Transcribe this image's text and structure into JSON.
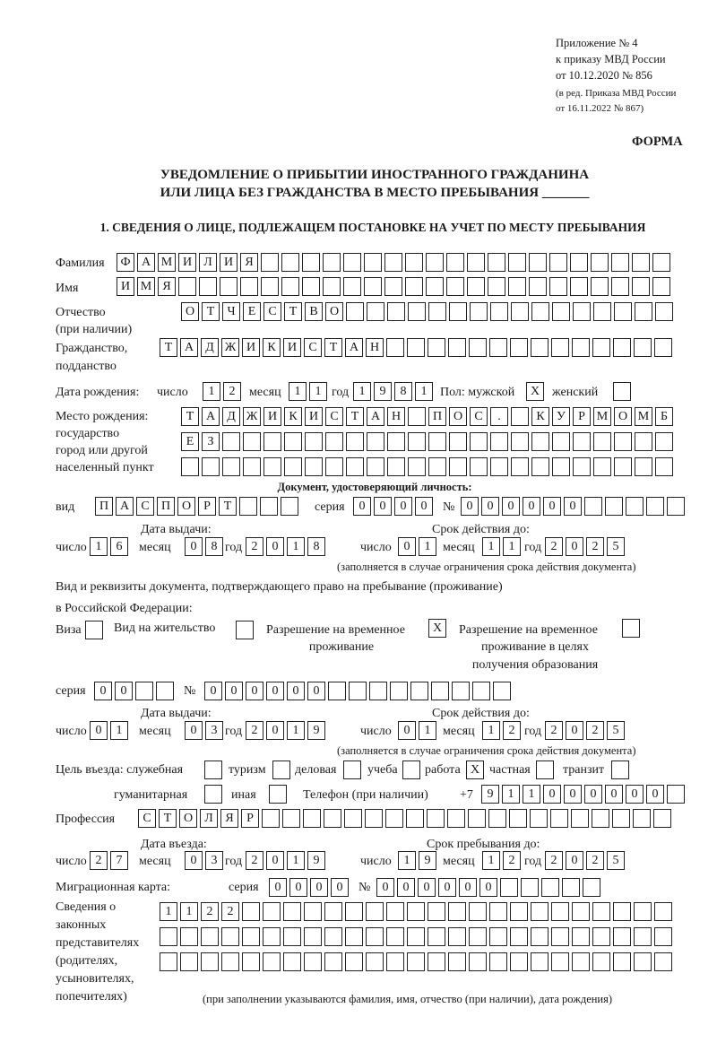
{
  "header": {
    "line1": "Приложение № 4",
    "line2": "к приказу МВД России",
    "line3": "от 10.12.2020 № 856",
    "line4": "(в ред. Приказа МВД России",
    "line5": "от 16.11.2022 № 867)",
    "form_label": "ФОРМА",
    "title1": "УВЕДОМЛЕНИЕ О ПРИБЫТИИ ИНОСТРАННОГО ГРАЖДАНИНА",
    "title2": "ИЛИ ЛИЦА БЕЗ ГРАЖДАНСТВА В МЕСТО ПРЕБЫВАНИЯ _______",
    "section1": "1. СВЕДЕНИЯ О ЛИЦЕ, ПОДЛЕЖАЩЕМ ПОСТАНОВКЕ НА УЧЕТ ПО МЕСТУ ПРЕБЫВАНИЯ"
  },
  "labels": {
    "surname": "Фамилия",
    "name": "Имя",
    "patronymic1": "Отчество",
    "patronymic2": "(при наличии)",
    "citizenship1": "Гражданство,",
    "citizenship2": "подданство",
    "birth_date": "Дата рождения:",
    "day": "число",
    "month": "месяц",
    "year": "год",
    "sex": "Пол: мужской",
    "female": "женский",
    "birth_place1": "Место рождения:",
    "birth_place2": "государство",
    "birth_place3": "город или другой",
    "birth_place4": "населенный пункт",
    "id_doc": "Документ, удостоверяющий личность:",
    "kind": "вид",
    "series": "серия",
    "number": "№",
    "issue_date": "Дата выдачи:",
    "valid_until": "Срок действия до:",
    "validity_note": "(заполняется в случае ограничения срока действия документа)",
    "right_doc1": "Вид и реквизиты документа, подтверждающего право на пребывание (проживание)",
    "right_doc2": "в Российской Федерации:",
    "visa": "Виза",
    "residence": "Вид на жительство",
    "temp_res1": "Разрешение на временное",
    "temp_res2": "проживание",
    "temp_edu1": "Разрешение на временное",
    "temp_edu2": "проживание в целях",
    "temp_edu3": "получения образования",
    "purpose": "Цель въезда: служебная",
    "tourism": "туризм",
    "business": "деловая",
    "study": "учеба",
    "work": "работа",
    "private": "частная",
    "transit": "транзит",
    "humanitarian": "гуманитарная",
    "other": "иная",
    "phone": "Телефон (при наличии)",
    "phone_prefix": "+7",
    "profession": "Профессия",
    "entry_date": "Дата въезда:",
    "stay_until": "Срок пребывания до:",
    "migration_card": "Миграционная карта:",
    "reps1": "Сведения о",
    "reps2": "законных",
    "reps3": "представителях",
    "reps4": "(родителях,",
    "reps5": "усыновителях,",
    "reps6": "попечителях)",
    "reps_note": "(при заполнении указываются фамилия, имя, отчество (при наличии), дата рождения)"
  },
  "values": {
    "surname": "ФАМИЛИЯ",
    "name": "ИМЯ",
    "patronymic": "ОТЧЕСТВО",
    "citizenship": "ТАДЖИКИСТАН",
    "birth_day": "12",
    "birth_month": "11",
    "birth_year": "1981",
    "sex_male": "X",
    "sex_female": "",
    "birth_place_1": "ТАДЖИКИСТАН ПОС. КУРМОМБ",
    "birth_place_2": "ЕЗ",
    "birth_place_3": "",
    "doc_kind": "ПАСПОРТ",
    "doc_series": "0000",
    "doc_number": "000000",
    "doc_issue_day": "16",
    "doc_issue_month": "08",
    "doc_issue_year": "2018",
    "doc_valid_day": "01",
    "doc_valid_month": "11",
    "doc_valid_year": "2025",
    "visa": "",
    "residence": "",
    "temp_res": "X",
    "temp_edu": "",
    "right_series": "00",
    "right_number": "000000",
    "right_issue_day": "01",
    "right_issue_month": "03",
    "right_issue_year": "2019",
    "right_valid_day": "01",
    "right_valid_month": "12",
    "right_valid_year": "2025",
    "purpose_service": "",
    "purpose_tourism": "",
    "purpose_business": "",
    "purpose_study": "",
    "purpose_work": "X",
    "purpose_private": "",
    "purpose_transit": "",
    "purpose_humanitarian": "",
    "purpose_other": "",
    "phone": "911000000",
    "profession": "СТОЛЯР",
    "entry_day": "27",
    "entry_month": "03",
    "entry_year": "2019",
    "stay_day": "19",
    "stay_month": "12",
    "stay_year": "2025",
    "mc_series": "0000",
    "mc_number": "000000",
    "reps_1": "1122",
    "reps_2": "",
    "reps_3": ""
  }
}
